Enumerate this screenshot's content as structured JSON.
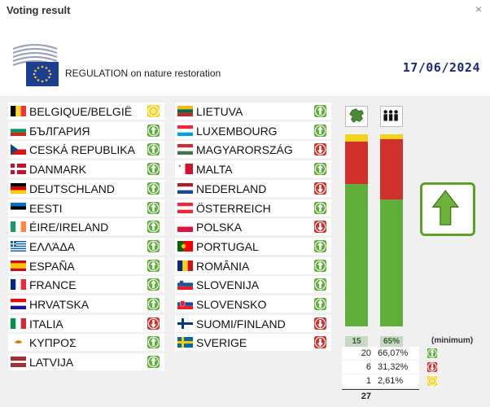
{
  "window": {
    "title": "Voting result",
    "close_label": "×"
  },
  "header": {
    "regulation": "REGULATION on nature restoration",
    "date": "17/06/2024"
  },
  "colors": {
    "yes": "#5fae3a",
    "no": "#d0312d",
    "abstain": "#f2d31b",
    "date": "#1b2a7a"
  },
  "countries": [
    {
      "name": "BELGIQUE/BELGIË",
      "vote": "abstain",
      "flag": "be"
    },
    {
      "name": "БЪЛГАРИЯ",
      "vote": "yes",
      "flag": "bg"
    },
    {
      "name": "CESKÁ REPUBLIKA",
      "vote": "yes",
      "flag": "cz"
    },
    {
      "name": "DANMARK",
      "vote": "yes",
      "flag": "dk"
    },
    {
      "name": "DEUTSCHLAND",
      "vote": "yes",
      "flag": "de"
    },
    {
      "name": "EESTI",
      "vote": "yes",
      "flag": "ee"
    },
    {
      "name": "ÉIRE/IRELAND",
      "vote": "yes",
      "flag": "ie"
    },
    {
      "name": "ΕΛΛΆΔΑ",
      "vote": "yes",
      "flag": "gr"
    },
    {
      "name": "ESPAÑA",
      "vote": "yes",
      "flag": "es"
    },
    {
      "name": "FRANCE",
      "vote": "yes",
      "flag": "fr"
    },
    {
      "name": "HRVATSKA",
      "vote": "yes",
      "flag": "hr"
    },
    {
      "name": "ITALIA",
      "vote": "no",
      "flag": "it"
    },
    {
      "name": "ΚΥΠΡΟΣ",
      "vote": "yes",
      "flag": "cy"
    },
    {
      "name": "LATVIJA",
      "vote": "yes",
      "flag": "lv"
    },
    {
      "name": "LIETUVA",
      "vote": "yes",
      "flag": "lt"
    },
    {
      "name": "LUXEMBOURG",
      "vote": "yes",
      "flag": "lu"
    },
    {
      "name": "MAGYARORSZÁG",
      "vote": "no",
      "flag": "hu"
    },
    {
      "name": "MALTA",
      "vote": "yes",
      "flag": "mt"
    },
    {
      "name": "NEDERLAND",
      "vote": "no",
      "flag": "nl"
    },
    {
      "name": "ÖSTERREICH",
      "vote": "yes",
      "flag": "at"
    },
    {
      "name": "POLSKA",
      "vote": "no",
      "flag": "pl"
    },
    {
      "name": "PORTUGAL",
      "vote": "yes",
      "flag": "pt"
    },
    {
      "name": "ROMÂNIA",
      "vote": "yes",
      "flag": "ro"
    },
    {
      "name": "SLOVENIJA",
      "vote": "yes",
      "flag": "si"
    },
    {
      "name": "SLOVENSKO",
      "vote": "yes",
      "flag": "sk"
    },
    {
      "name": "SUOMI/FINLAND",
      "vote": "no",
      "flag": "fi"
    },
    {
      "name": "SVERIGE",
      "vote": "no",
      "flag": "se"
    }
  ],
  "states_bar": {
    "label": "15",
    "yes_pct": 74,
    "no_pct": 22,
    "abstain_pct": 4
  },
  "population_bar": {
    "label": "65%",
    "yes_pct": 66.07,
    "no_pct": 31.32,
    "abstain_pct": 2.61
  },
  "minimum_label": "(minimum)",
  "tally": [
    {
      "count": "20",
      "pct": "66,07%",
      "type": "yes"
    },
    {
      "count": "6",
      "pct": "31,32%",
      "type": "no"
    },
    {
      "count": "1",
      "pct": "2,61%",
      "type": "abstain"
    }
  ],
  "total": "27",
  "result": "adopted"
}
